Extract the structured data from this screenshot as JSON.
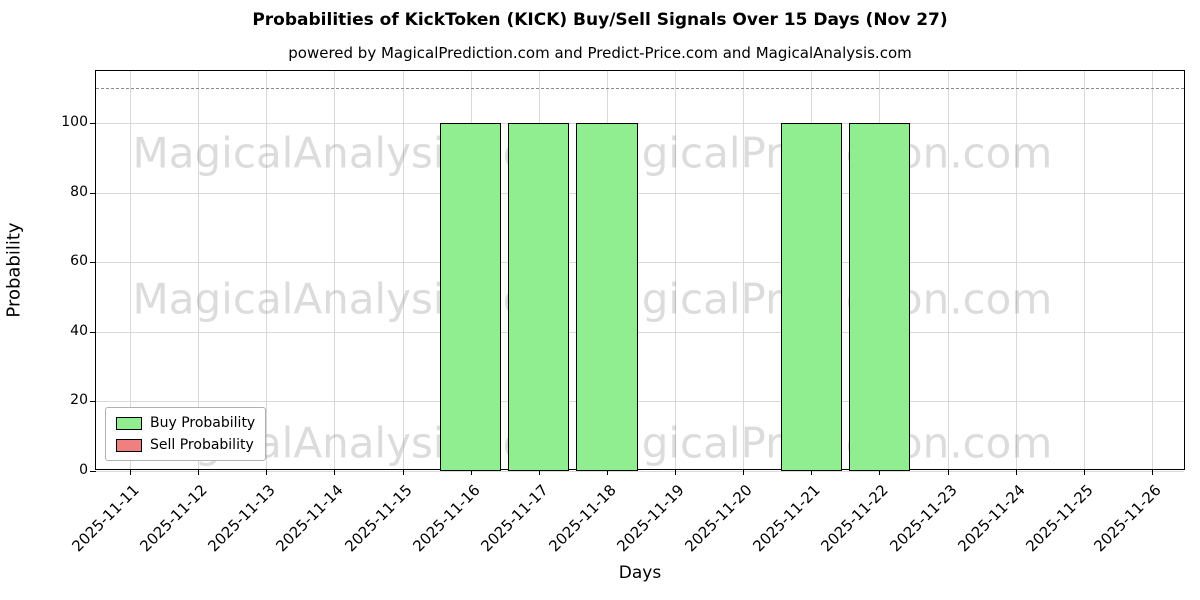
{
  "title": "Probabilities of KickToken (KICK) Buy/Sell Signals Over 15 Days (Nov 27)",
  "subtitle": "powered by MagicalPrediction.com and Predict-Price.com and MagicalAnalysis.com",
  "watermarks": {
    "left": "MagicalAnalysis.com",
    "right": "MagicalPrediction.com"
  },
  "chart_data": {
    "type": "bar",
    "title": "Probabilities of KickToken (KICK) Buy/Sell Signals Over 15 Days (Nov 27)",
    "xlabel": "Days",
    "ylabel": "Probability",
    "categories": [
      "2025-11-11",
      "2025-11-12",
      "2025-11-13",
      "2025-11-14",
      "2025-11-15",
      "2025-11-16",
      "2025-11-17",
      "2025-11-18",
      "2025-11-19",
      "2025-11-20",
      "2025-11-21",
      "2025-11-22",
      "2025-11-23",
      "2025-11-24",
      "2025-11-25",
      "2025-11-26"
    ],
    "series": [
      {
        "name": "Buy Probability",
        "color": "#90ee90",
        "values": [
          0,
          0,
          0,
          0,
          0,
          100,
          100,
          100,
          0,
          0,
          100,
          100,
          0,
          0,
          0,
          0
        ]
      },
      {
        "name": "Sell Probability",
        "color": "#f08080",
        "values": [
          0,
          0,
          0,
          0,
          0,
          0,
          0,
          0,
          0,
          0,
          0,
          0,
          0,
          0,
          0,
          0
        ]
      }
    ],
    "ylim": [
      0,
      115
    ],
    "yticks": [
      0,
      20,
      40,
      60,
      80,
      100
    ],
    "dashed_line_y": 110,
    "grid": true,
    "legend_position": "lower left"
  }
}
